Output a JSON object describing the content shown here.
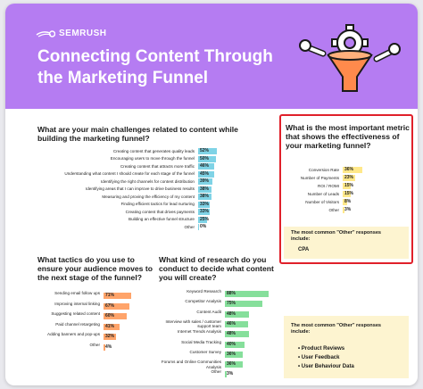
{
  "header": {
    "logo": "SEMRUSH",
    "title": "Connecting Content Through the Marketing Funnel"
  },
  "colors": {
    "purple": "#b57cf2",
    "teal": "#7fd3e6",
    "orange": "#ffa46a",
    "green": "#86df9b",
    "yellow": "#ffe88a",
    "cream": "#fdf4d0",
    "red": "#e0202a"
  },
  "chart_data": [
    {
      "type": "bar",
      "title": "What are your main challenges related to content while building the marketing funnel?",
      "categories": [
        "Creating content that generates quality leads",
        "Encouraging users to move through the funnel",
        "Creating content that attracts more traffic",
        "Understanding what content I should create for each stage of the funnel",
        "Identifying the right channels for content distribution",
        "Identifying areas that I can improve to drive business results",
        "Measuring and proving the efficiency of my content",
        "Finding efficient tactics for lead nurturing",
        "Creating content that drives payments",
        "Building an effective funnel structure",
        "Other"
      ],
      "values": [
        52,
        50,
        46,
        45,
        39,
        38,
        38,
        33,
        33,
        25,
        0
      ],
      "value_labels": [
        "52%",
        "50%",
        "46%",
        "45%",
        "39%",
        "38%",
        "38%",
        "33%",
        "33%",
        "25%",
        "0%"
      ],
      "xlim": [
        0,
        100
      ]
    },
    {
      "type": "bar",
      "title": "What is the most important metric that shows the effectiveness of your marketing funnel?",
      "categories": [
        "Conversion Rate",
        "Number of Payments",
        "ROI / ROMI",
        "Number of Leads",
        "Number of Visitors",
        "Other"
      ],
      "values": [
        36,
        23,
        15,
        15,
        8,
        3
      ],
      "value_labels": [
        "36%",
        "23%",
        "15%",
        "15%",
        "8%",
        "3%"
      ],
      "xlim": [
        0,
        100
      ]
    },
    {
      "type": "bar",
      "title": "What tactics do you use to ensure your audience moves to the next stage of the funnel?",
      "categories": [
        "Sending email follow ups",
        "Improving internal linking",
        "Suggesting related content",
        "Paid channel retargeting",
        "Adding banners and pop-ups",
        "Other"
      ],
      "values": [
        71,
        67,
        60,
        41,
        32,
        4
      ],
      "value_labels": [
        "71%",
        "67%",
        "60%",
        "41%",
        "32%",
        "4%"
      ],
      "xlim": [
        0,
        100
      ]
    },
    {
      "type": "bar",
      "title": "What kind of research do you conduct to decide what content you will create?",
      "categories": [
        "Keyword Research",
        "Competitor Analysis",
        "Content Audit",
        "Interview with sales / customer support team",
        "Internet Trends Analysis",
        "Social Media Tracking",
        "Customer Survey",
        "Forums and Online Communities Analysis",
        "Other"
      ],
      "values": [
        88,
        75,
        48,
        46,
        48,
        40,
        36,
        36,
        3
      ],
      "value_labels": [
        "88%",
        "75%",
        "48%",
        "46%",
        "48%",
        "40%",
        "36%",
        "36%",
        "3%"
      ],
      "xlim": [
        0,
        100
      ]
    }
  ],
  "metric_other": {
    "title": "The most common \"Other\" responses include:",
    "items": [
      "CPA"
    ]
  },
  "research_other": {
    "title": "The most common \"Other\" responses include:",
    "items": [
      "Product Reviews",
      "User Feedback",
      "User Behaviour Data"
    ]
  }
}
